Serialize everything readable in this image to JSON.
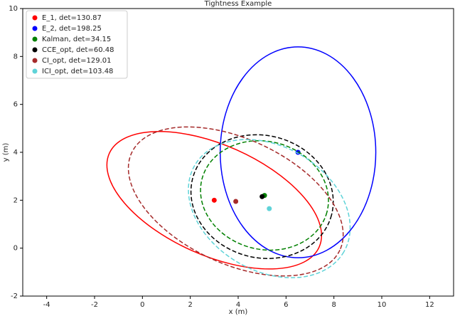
{
  "chart_data": {
    "type": "scatter",
    "title": "Tightness Example",
    "x_label": "x (m)",
    "y_label": "y (m)",
    "xlim": [
      -5,
      13
    ],
    "ylim": [
      -2,
      10
    ],
    "xticks": [
      -4,
      -2,
      0,
      2,
      4,
      6,
      8,
      10,
      12
    ],
    "yticks": [
      -2,
      0,
      2,
      4,
      6,
      8,
      10
    ],
    "legend": "upper left",
    "series": [
      {
        "name": "E_1, det=130.87",
        "color": "#ff0000",
        "x": [
          3.0
        ],
        "values": [
          2.0
        ],
        "ellipse": {
          "a": 4.8,
          "b": 2.3,
          "angle": -24,
          "style": "solid"
        }
      },
      {
        "name": "E_2, det=198.25",
        "color": "#0000ff",
        "x": [
          6.5
        ],
        "values": [
          4.0
        ],
        "ellipse": {
          "a": 4.4,
          "b": 3.25,
          "angle": 90,
          "style": "solid"
        }
      },
      {
        "name": "Kalman, det=34.15",
        "color": "#008000",
        "x": [
          5.1
        ],
        "values": [
          2.2
        ],
        "ellipse": {
          "a": 2.7,
          "b": 2.25,
          "angle": -15,
          "style": "dashed"
        }
      },
      {
        "name": "CCE_opt, det=60.48",
        "color": "#000000",
        "x": [
          5.0
        ],
        "values": [
          2.15
        ],
        "ellipse": {
          "a": 3.0,
          "b": 2.55,
          "angle": -15,
          "style": "dashed"
        }
      },
      {
        "name": "CI_opt, det=129.01",
        "color": "#a52a2a",
        "x": [
          3.9
        ],
        "values": [
          1.95
        ],
        "ellipse": {
          "a": 4.8,
          "b": 2.6,
          "angle": -25,
          "style": "dashed"
        }
      },
      {
        "name": "ICI_opt, det=103.48",
        "color": "#5fd3d8",
        "x": [
          5.3
        ],
        "values": [
          1.65
        ],
        "ellipse": {
          "a": 3.6,
          "b": 2.6,
          "angle": -30,
          "style": "dashed"
        }
      }
    ]
  }
}
